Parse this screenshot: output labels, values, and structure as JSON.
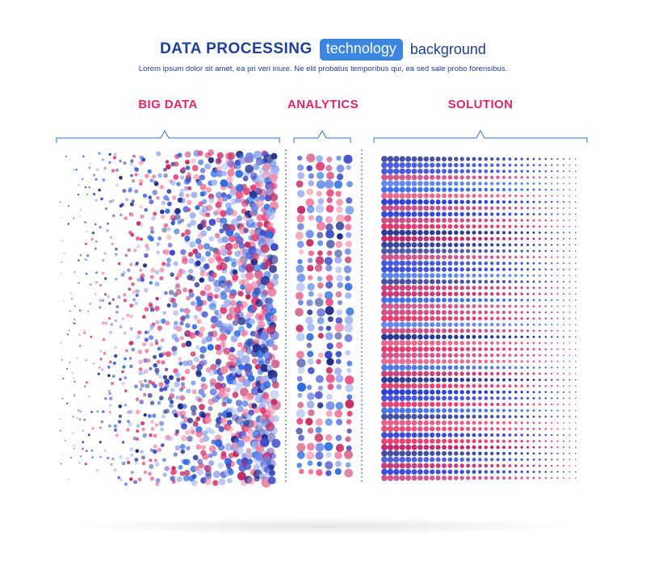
{
  "header": {
    "title_main": "DATA PROCESSING",
    "title_badge": "technology",
    "title_tail": "background",
    "subtitle": "Lorem ipsum dolor sit amet, ea pri veri iriure. Ne elit probatus temporibus qui, ea sed sale probo forensibus."
  },
  "sections": {
    "big_data": "BIG DATA",
    "analytics": "ANALYTICS",
    "solution": "SOLUTION"
  },
  "colors": {
    "title": "#1e3f9a",
    "badge": "#3a86e0",
    "label": "#e0246f",
    "bracket": "#2f6fc1",
    "dots": [
      "#1f2a8a",
      "#3a49c9",
      "#6f86e6",
      "#e8447a",
      "#f08aa8",
      "#c42a63",
      "#2d6be0",
      "#a7b6f2"
    ],
    "stripes": [
      "#2b3fd6",
      "#e23a6f",
      "#3e6ee8",
      "#c2266b",
      "#1c2a8f"
    ]
  }
}
